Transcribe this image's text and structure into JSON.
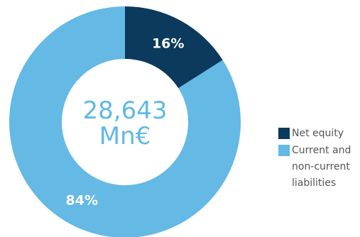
{
  "chart_data": {
    "type": "pie",
    "donut": true,
    "categories": [
      "Net equity",
      "Current and non-current liabilities"
    ],
    "values": [
      16,
      84
    ],
    "data_labels": [
      "16%",
      "84%"
    ],
    "colors": [
      "#0b3a5c",
      "#64b9e5"
    ],
    "center_text": [
      "28,643",
      "Mn€"
    ],
    "legend_placement": "right"
  },
  "legend": {
    "items": [
      {
        "label": "Net equity",
        "color": "#0b3a5c"
      },
      {
        "label": "Current and\nnon-current\nliabilities",
        "color": "#64b9e5"
      }
    ]
  }
}
